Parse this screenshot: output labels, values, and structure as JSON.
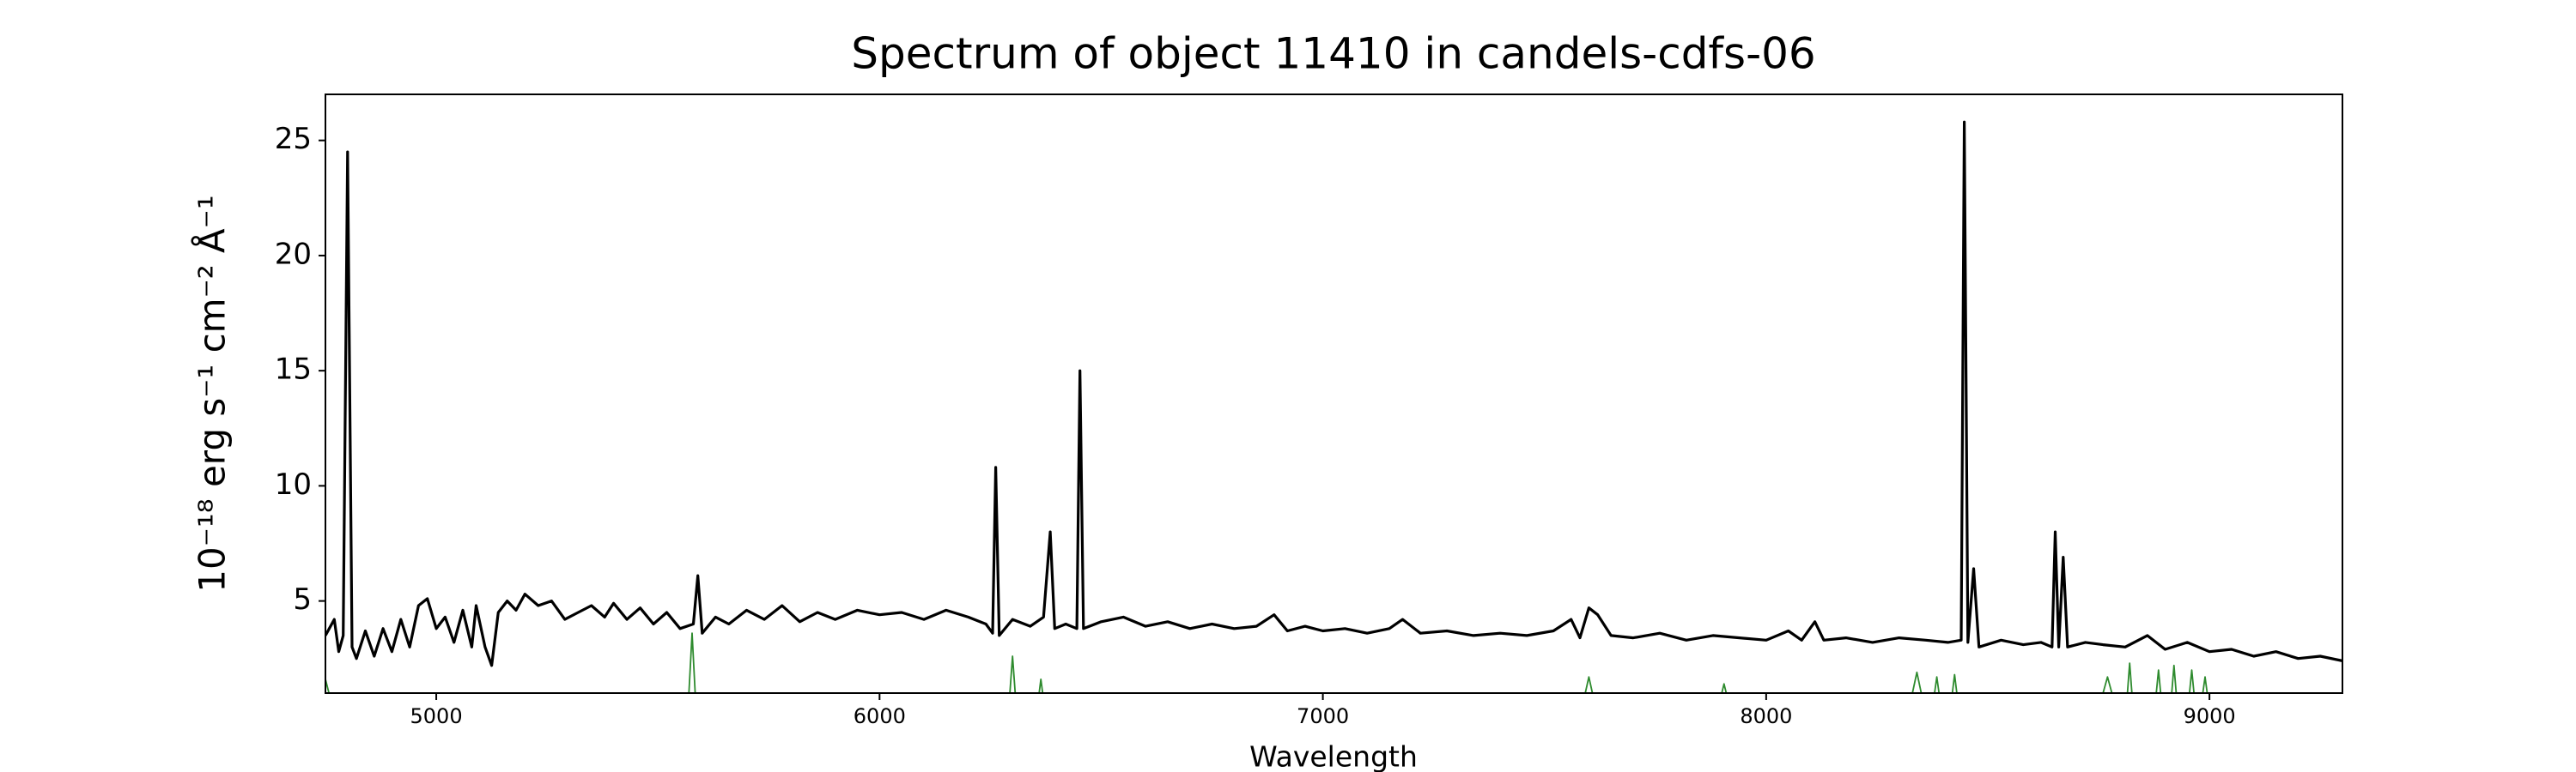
{
  "chart_data": {
    "type": "line",
    "title": "Spectrum of object 11410 in candels-cdfs-06",
    "xlabel": "Wavelength",
    "ylabel": "10⁻¹⁸ erg s⁻¹ cm⁻² Å⁻¹",
    "xlim": [
      4750,
      9300
    ],
    "ylim": [
      1,
      27
    ],
    "xticks": [
      5000,
      6000,
      7000,
      8000,
      9000
    ],
    "yticks": [
      5,
      10,
      15,
      20,
      25
    ],
    "series": [
      {
        "color": "#000000",
        "x": [
          4750,
          4770,
          4780,
          4790,
          4800,
          4810,
          4820,
          4840,
          4860,
          4880,
          4900,
          4920,
          4940,
          4960,
          4980,
          5000,
          5020,
          5040,
          5060,
          5080,
          5090,
          5110,
          5125,
          5140,
          5160,
          5180,
          5200,
          5230,
          5260,
          5290,
          5320,
          5350,
          5380,
          5400,
          5430,
          5460,
          5490,
          5520,
          5550,
          5580,
          5590,
          5600,
          5630,
          5660,
          5700,
          5740,
          5780,
          5820,
          5860,
          5900,
          5950,
          6000,
          6050,
          6100,
          6150,
          6200,
          6240,
          6255,
          6262,
          6270,
          6300,
          6340,
          6370,
          6385,
          6395,
          6420,
          6445,
          6452,
          6460,
          6500,
          6550,
          6600,
          6650,
          6700,
          6750,
          6800,
          6850,
          6890,
          6920,
          6960,
          7000,
          7050,
          7100,
          7150,
          7180,
          7220,
          7280,
          7340,
          7400,
          7460,
          7520,
          7560,
          7580,
          7600,
          7620,
          7650,
          7700,
          7760,
          7820,
          7880,
          7940,
          8000,
          8050,
          8080,
          8110,
          8130,
          8180,
          8240,
          8300,
          8360,
          8410,
          8440,
          8447,
          8455,
          8468,
          8480,
          8530,
          8580,
          8620,
          8645,
          8652,
          8660,
          8670,
          8680,
          8720,
          8760,
          8810,
          8860,
          8900,
          8950,
          9000,
          9050,
          9100,
          9150,
          9200,
          9250,
          9300
        ],
        "values": [
          3.5,
          4.2,
          2.8,
          3.5,
          24.5,
          3.0,
          2.5,
          3.7,
          2.6,
          3.8,
          2.8,
          4.2,
          3.0,
          4.8,
          5.1,
          3.8,
          4.3,
          3.2,
          4.6,
          3.0,
          4.8,
          3.0,
          2.2,
          4.5,
          5.0,
          4.6,
          5.3,
          4.8,
          5.0,
          4.2,
          4.5,
          4.8,
          4.3,
          4.9,
          4.2,
          4.7,
          4.0,
          4.5,
          3.8,
          4.0,
          6.1,
          3.6,
          4.3,
          4.0,
          4.6,
          4.2,
          4.8,
          4.1,
          4.5,
          4.2,
          4.6,
          4.4,
          4.5,
          4.2,
          4.6,
          4.3,
          4.0,
          3.6,
          10.8,
          3.5,
          4.2,
          3.9,
          4.3,
          8.0,
          3.8,
          4.0,
          3.8,
          15.0,
          3.8,
          4.1,
          4.3,
          3.9,
          4.1,
          3.8,
          4.0,
          3.8,
          3.9,
          4.4,
          3.7,
          3.9,
          3.7,
          3.8,
          3.6,
          3.8,
          4.2,
          3.6,
          3.7,
          3.5,
          3.6,
          3.5,
          3.7,
          4.2,
          3.4,
          4.7,
          4.4,
          3.5,
          3.4,
          3.6,
          3.3,
          3.5,
          3.4,
          3.3,
          3.7,
          3.3,
          4.1,
          3.3,
          3.4,
          3.2,
          3.4,
          3.3,
          3.2,
          3.3,
          25.8,
          3.2,
          6.4,
          3.0,
          3.3,
          3.1,
          3.2,
          3.0,
          8.0,
          3.0,
          6.9,
          3.0,
          3.2,
          3.1,
          3.0,
          3.5,
          2.9,
          3.2,
          2.8,
          2.9,
          2.6,
          2.8,
          2.5,
          2.6,
          2.4
        ]
      },
      {
        "color": "#2e8b2e",
        "x": [
          4750,
          4758,
          5570,
          5577,
          5584,
          6294,
          6300,
          6306,
          6360,
          6364,
          6368,
          7592,
          7600,
          7608,
          7900,
          7905,
          7910,
          8330,
          8340,
          8350,
          8380,
          8385,
          8390,
          8420,
          8425,
          8430,
          8760,
          8770,
          8780,
          8815,
          8820,
          8825,
          8880,
          8885,
          8890,
          8915,
          8920,
          8925,
          8955,
          8960,
          8965,
          8985,
          8990,
          8995
        ],
        "values": [
          1.6,
          1,
          1,
          3.6,
          1,
          1,
          2.6,
          1,
          1,
          1.6,
          1,
          1,
          1.7,
          1,
          1,
          1.4,
          1,
          1,
          1.9,
          1,
          1,
          1.7,
          1,
          1,
          1.8,
          1,
          1,
          1.7,
          1,
          1,
          2.3,
          1,
          1,
          2.0,
          1,
          1,
          2.2,
          1,
          1,
          2.0,
          1,
          1,
          1.7,
          1
        ]
      }
    ]
  }
}
